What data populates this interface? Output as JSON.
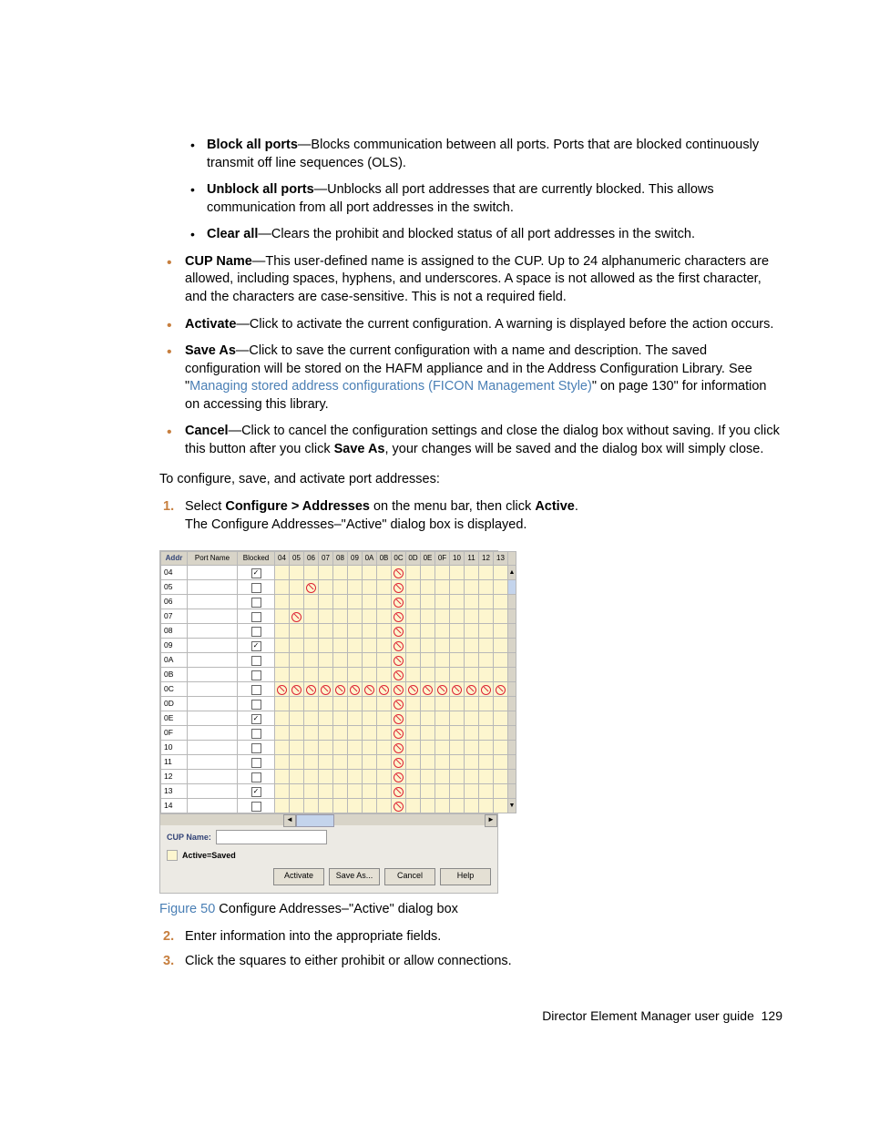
{
  "bullets_inner": {
    "block_all_label": "Block all ports",
    "block_all_text": "—Blocks communication between all ports. Ports that are blocked continuously transmit off line sequences (OLS).",
    "unblock_label": "Unblock all ports",
    "unblock_text": "—Unblocks all port addresses that are currently blocked. This allows communication from all port addresses in the switch.",
    "clear_label": "Clear all",
    "clear_text": "—Clears the prohibit and blocked status of all port addresses in the switch."
  },
  "bullets_outer": {
    "cup_label": "CUP Name",
    "cup_text": "—This user-defined name is assigned to the CUP. Up to 24 alphanumeric characters are allowed, including spaces, hyphens, and underscores. A space is not allowed as the first character, and the characters are case-sensitive. This is not a required field.",
    "activate_label": "Activate",
    "activate_text": "—Click to activate the current configuration. A warning is displayed before the action occurs.",
    "saveas_label": "Save As",
    "saveas_text1": "—Click to save the current configuration with a name and description. The saved configuration will be stored on the HAFM appliance and in the Address Configuration Library. See \"",
    "saveas_link": "Managing stored address configurations (FICON Management Style)",
    "saveas_text2": "\" on page 130\" for information on accessing this library.",
    "cancel_label": "Cancel",
    "cancel_text1": "—Click to cancel the configuration settings and close the dialog box without saving. If you click this button after you click ",
    "cancel_bold": "Save As",
    "cancel_text2": ", your changes will be saved and the dialog box will simply close."
  },
  "intro": "To configure, save, and activate port addresses:",
  "steps": {
    "s1a": "Select ",
    "s1b": "Configure > Addresses",
    "s1c": " on the menu bar, then click ",
    "s1d": "Active",
    "s1e": ".",
    "s1f": "The Configure Addresses–\"Active\" dialog box is displayed.",
    "s2": "Enter information into the appropriate fields.",
    "s3": "Click the squares to either prohibit or allow connections."
  },
  "figure": {
    "num": "Figure 50",
    "caption": "  Configure Addresses–\"Active\" dialog box"
  },
  "footer": {
    "text": "Director Element Manager user guide",
    "page": "129"
  },
  "dialog": {
    "headers": {
      "addr": "Addr",
      "pname": "Port Name",
      "blocked": "Blocked"
    },
    "port_cols": [
      "04",
      "05",
      "06",
      "07",
      "08",
      "09",
      "0A",
      "0B",
      "0C",
      "0D",
      "0E",
      "0F",
      "10",
      "11",
      "12",
      "13"
    ],
    "cup_label": "CUP Name:",
    "legend": "Active=Saved",
    "buttons": {
      "activate": "Activate",
      "saveas": "Save As...",
      "cancel": "Cancel",
      "help": "Help"
    },
    "rows": [
      {
        "addr": "04",
        "checked": true
      },
      {
        "addr": "05",
        "checked": false,
        "extra": [
          2
        ]
      },
      {
        "addr": "06",
        "checked": false
      },
      {
        "addr": "07",
        "checked": false,
        "extra": [
          1
        ]
      },
      {
        "addr": "08",
        "checked": false
      },
      {
        "addr": "09",
        "checked": true
      },
      {
        "addr": "0A",
        "checked": false
      },
      {
        "addr": "0B",
        "checked": false
      },
      {
        "addr": "0C",
        "checked": false,
        "allRow": true
      },
      {
        "addr": "0D",
        "checked": false
      },
      {
        "addr": "0E",
        "checked": true
      },
      {
        "addr": "0F",
        "checked": false
      },
      {
        "addr": "10",
        "checked": false
      },
      {
        "addr": "11",
        "checked": false
      },
      {
        "addr": "12",
        "checked": false
      },
      {
        "addr": "13",
        "checked": true
      },
      {
        "addr": "14",
        "checked": false
      }
    ]
  }
}
